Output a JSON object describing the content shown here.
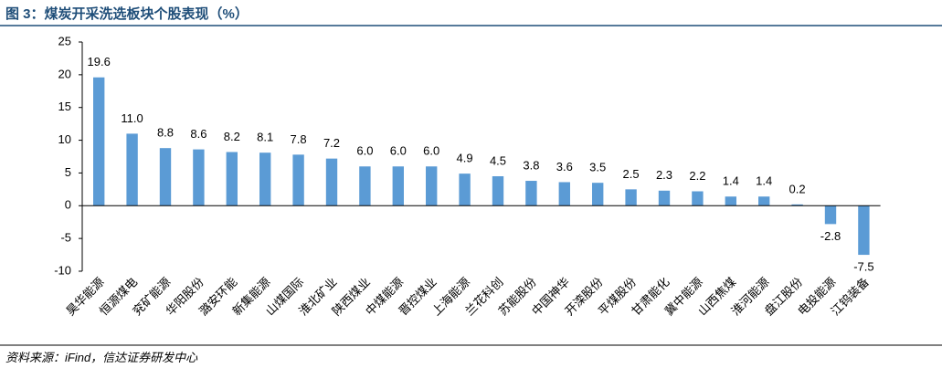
{
  "chart_data": {
    "type": "bar",
    "title": "图 3：煤炭开采洗选板块个股表现（%）",
    "source": "资料来源：iFind，信达证券研发中心",
    "categories": [
      "昊华能源",
      "恒源煤电",
      "兖矿能源",
      "华阳股份",
      "潞安环能",
      "新集能源",
      "山煤国际",
      "淮北矿业",
      "陕西煤业",
      "中煤能源",
      "晋控煤业",
      "上海能源",
      "兰花科创",
      "苏能股份",
      "中国神华",
      "开滦股份",
      "平煤股份",
      "甘肃能化",
      "冀中能源",
      "山西焦煤",
      "淮河能源",
      "盘江股份",
      "电投能源",
      "江钨装备"
    ],
    "values": [
      19.6,
      11.0,
      8.8,
      8.6,
      8.2,
      8.1,
      7.8,
      7.2,
      6.0,
      6.0,
      6.0,
      4.9,
      4.5,
      3.8,
      3.6,
      3.5,
      2.5,
      2.3,
      2.2,
      1.4,
      1.4,
      0.2,
      -2.8,
      -7.5
    ],
    "value_labels": [
      "19.6",
      "11.0",
      "8.8",
      "8.6",
      "8.2",
      "8.1",
      "7.8",
      "7.2",
      "6.0",
      "6.0",
      "6.0",
      "4.9",
      "4.5",
      "3.8",
      "3.6",
      "3.5",
      "2.5",
      "2.3",
      "2.2",
      "1.4",
      "1.4",
      "0.2",
      "-2.8",
      "-7.5"
    ],
    "color": "#5b9bd5",
    "ylim": [
      -10,
      25
    ],
    "yticks": [
      -10,
      -5,
      0,
      5,
      10,
      15,
      20,
      25
    ],
    "grid": false
  }
}
